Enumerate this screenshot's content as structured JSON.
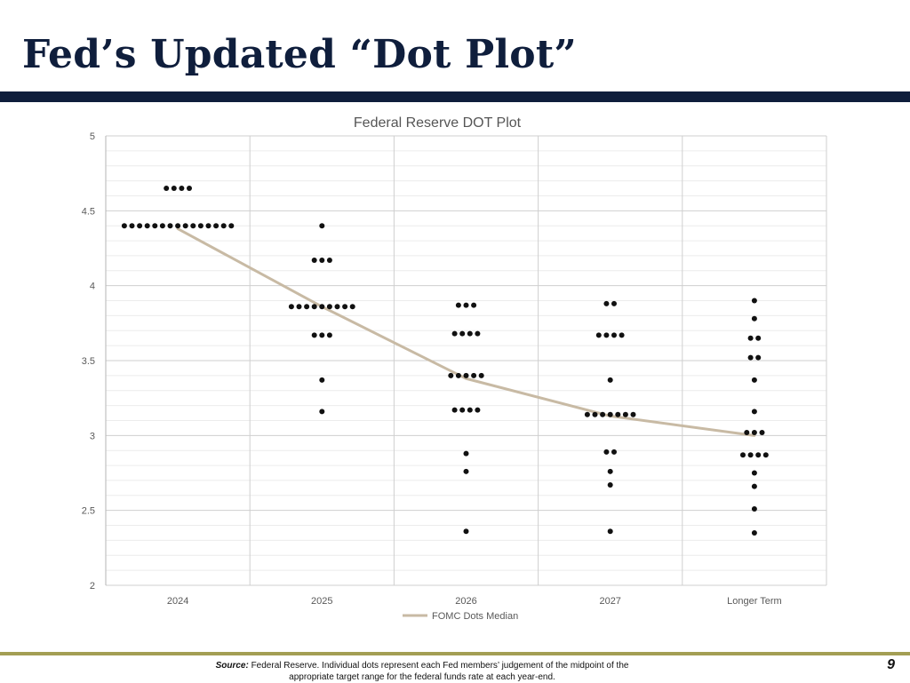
{
  "slide": {
    "title": "Fed’s Updated “Dot Plot”",
    "page_number": "9",
    "source_label": "Source:",
    "source_text": "Federal Reserve. Individual dots represent each Fed members’ judgement of the midpoint of the appropriate target range for the federal funds rate at each year-end."
  },
  "colors": {
    "title": "#0f1e3c",
    "title_bar": "#0f1e3c",
    "bottom_line": "#a39e54",
    "median_line": "#c8baa4",
    "dots": "#111111",
    "grid": "#d9d9d9"
  },
  "chart_data": {
    "type": "scatter",
    "title": "Federal Reserve DOT Plot",
    "categories": [
      "2024",
      "2025",
      "2026",
      "2027",
      "Longer Term"
    ],
    "ylim": [
      2,
      5
    ],
    "y_ticks": [
      "2",
      "2.5",
      "3",
      "3.5",
      "4",
      "4.5",
      "5"
    ],
    "grid": true,
    "legend_position": "bottom",
    "dots": [
      [
        {
          "y": 4.65,
          "count": 4
        },
        {
          "y": 4.4,
          "count": 15
        }
      ],
      [
        {
          "y": 4.4,
          "count": 1
        },
        {
          "y": 4.17,
          "count": 3
        },
        {
          "y": 3.86,
          "count": 9
        },
        {
          "y": 3.67,
          "count": 3
        },
        {
          "y": 3.37,
          "count": 1
        },
        {
          "y": 3.16,
          "count": 1
        }
      ],
      [
        {
          "y": 3.87,
          "count": 3
        },
        {
          "y": 3.68,
          "count": 4
        },
        {
          "y": 3.4,
          "count": 5
        },
        {
          "y": 3.17,
          "count": 4
        },
        {
          "y": 2.88,
          "count": 1
        },
        {
          "y": 2.76,
          "count": 1
        },
        {
          "y": 2.36,
          "count": 1
        }
      ],
      [
        {
          "y": 3.88,
          "count": 2
        },
        {
          "y": 3.67,
          "count": 4
        },
        {
          "y": 3.37,
          "count": 1
        },
        {
          "y": 3.14,
          "count": 7
        },
        {
          "y": 2.89,
          "count": 2
        },
        {
          "y": 2.76,
          "count": 1
        },
        {
          "y": 2.67,
          "count": 1
        },
        {
          "y": 2.36,
          "count": 1
        }
      ],
      [
        {
          "y": 3.9,
          "count": 1
        },
        {
          "y": 3.78,
          "count": 1
        },
        {
          "y": 3.65,
          "count": 2
        },
        {
          "y": 3.52,
          "count": 2
        },
        {
          "y": 3.37,
          "count": 1
        },
        {
          "y": 3.16,
          "count": 1
        },
        {
          "y": 3.02,
          "count": 3
        },
        {
          "y": 2.87,
          "count": 4
        },
        {
          "y": 2.75,
          "count": 1
        },
        {
          "y": 2.66,
          "count": 1
        },
        {
          "y": 2.51,
          "count": 1
        },
        {
          "y": 2.35,
          "count": 1
        }
      ]
    ],
    "series": [
      {
        "name": "FOMC Dots Median",
        "type": "line",
        "values": [
          4.38,
          3.86,
          3.38,
          3.13,
          3.0
        ]
      }
    ]
  }
}
